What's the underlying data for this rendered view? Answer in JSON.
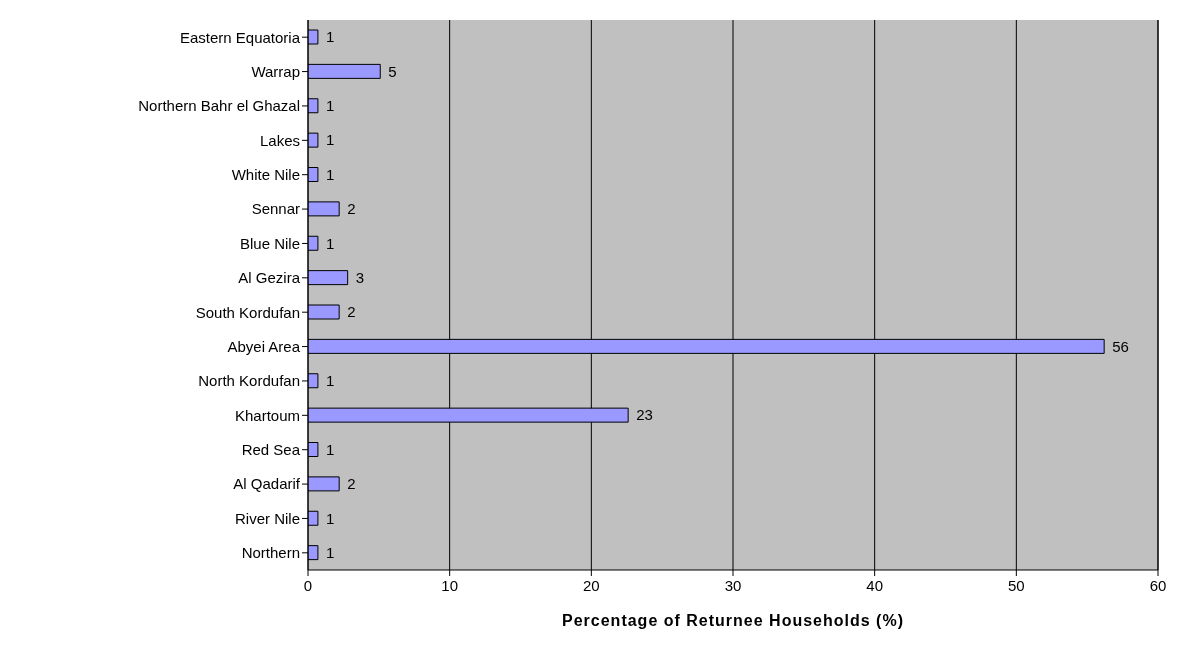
{
  "chart_data": {
    "type": "bar",
    "orientation": "horizontal",
    "xlabel": "Percentage of Returnee Households (%)",
    "categories": [
      "Eastern Equatoria",
      "Warrap",
      "Northern Bahr el Ghazal",
      "Lakes",
      "White Nile",
      "Sennar",
      "Blue Nile",
      "Al Gezira",
      "South Kordufan",
      "Abyei Area",
      "North Kordufan",
      "Khartoum",
      "Red Sea",
      "Al Qadarif",
      "River Nile",
      "Northern"
    ],
    "values": [
      0.7,
      5.1,
      0.7,
      0.7,
      0.7,
      2.2,
      0.7,
      2.8,
      2.2,
      56.2,
      0.7,
      22.6,
      0.7,
      2.2,
      0.7,
      0.7
    ],
    "value_labels": [
      "1",
      "5",
      "1",
      "1",
      "1",
      "2",
      "1",
      "3",
      "2",
      "56",
      "1",
      "23",
      "1",
      "2",
      "1",
      "1"
    ],
    "color": "#9999ff",
    "xlim": [
      0,
      60
    ],
    "xticks": [
      0,
      10,
      20,
      30,
      40,
      50,
      60
    ],
    "grid": "x"
  }
}
